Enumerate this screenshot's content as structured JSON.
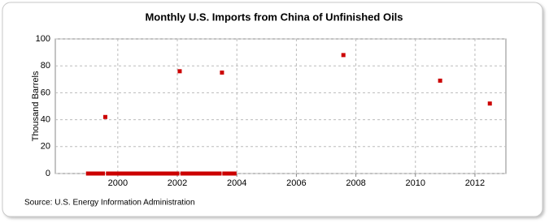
{
  "chart_data": {
    "type": "scatter",
    "title": "Monthly U.S. Imports from China of Unfinished Oils",
    "y_label": "Thousand Barrels",
    "source": "Source: U.S. Energy Information Administration",
    "x": [
      1999,
      1999.08,
      1999.17,
      1999.25,
      1999.33,
      1999.42,
      1999.5,
      1999.58,
      1999.67,
      1999.75,
      1999.83,
      1999.92,
      2000,
      2000.08,
      2000.17,
      2000.25,
      2000.33,
      2000.42,
      2000.5,
      2000.58,
      2000.67,
      2000.75,
      2000.83,
      2000.92,
      2001,
      2001.08,
      2001.17,
      2001.25,
      2001.33,
      2001.42,
      2001.5,
      2001.58,
      2001.67,
      2001.75,
      2001.83,
      2001.92,
      2002,
      2002.08,
      2002.17,
      2002.25,
      2002.33,
      2002.42,
      2002.5,
      2002.58,
      2002.67,
      2002.75,
      2002.83,
      2002.92,
      2003,
      2003.08,
      2003.17,
      2003.25,
      2003.33,
      2003.42,
      2003.5,
      2003.58,
      2003.67,
      2003.75,
      2003.83,
      2003.92,
      2007.58,
      2010.83,
      2012.5
    ],
    "values": [
      0,
      0,
      0,
      0,
      0,
      0,
      0,
      42,
      0,
      0,
      0,
      0,
      0,
      0,
      0,
      0,
      0,
      0,
      0,
      0,
      0,
      0,
      0,
      0,
      0,
      0,
      0,
      0,
      0,
      0,
      0,
      0,
      0,
      0,
      0,
      0,
      0,
      76,
      0,
      0,
      0,
      0,
      0,
      0,
      0,
      0,
      0,
      0,
      0,
      0,
      0,
      0,
      0,
      0,
      75,
      0,
      0,
      0,
      0,
      0,
      88,
      69,
      52
    ],
    "color": "#cc0000",
    "xlim": [
      1997.9,
      2013.04
    ],
    "xticks": [
      2000,
      2002,
      2004,
      2006,
      2008,
      2010,
      2012
    ],
    "ylim": [
      0,
      100
    ],
    "yticks": [
      0,
      20,
      40,
      60,
      80,
      100
    ],
    "grid": true
  }
}
